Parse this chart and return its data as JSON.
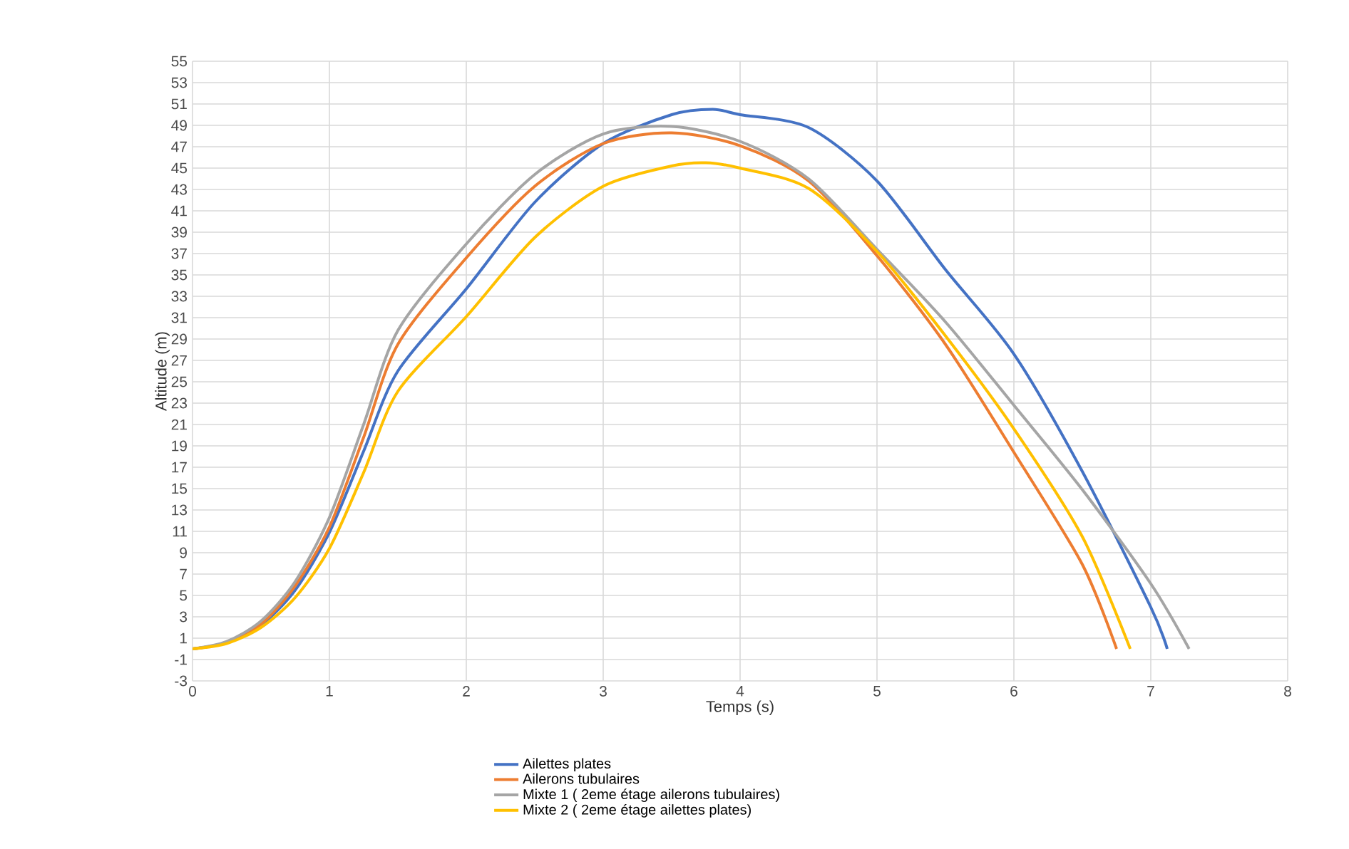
{
  "chart_data": {
    "type": "line",
    "xlabel": "Temps (s)",
    "ylabel": "Altitude (m)",
    "xlim": [
      0,
      8
    ],
    "xticks": [
      0,
      1,
      2,
      3,
      4,
      5,
      6,
      7,
      8
    ],
    "ylim": [
      -3,
      55
    ],
    "yticks": [
      -3,
      -1,
      1,
      3,
      5,
      7,
      9,
      11,
      13,
      15,
      17,
      19,
      21,
      23,
      25,
      27,
      29,
      31,
      33,
      35,
      37,
      39,
      41,
      43,
      45,
      47,
      49,
      51,
      53,
      55
    ],
    "grid": true,
    "legend": "bottom",
    "series": [
      {
        "name": "Ailettes plates",
        "color": "#4472c4",
        "x": [
          0,
          0.25,
          0.5,
          0.75,
          1,
          1.25,
          1.5,
          2,
          2.5,
          3,
          3.5,
          3.8,
          4,
          4.5,
          5,
          5.5,
          6,
          6.5,
          7,
          7.12
        ],
        "values": [
          0,
          0.6,
          2.2,
          5.5,
          10.9,
          18.5,
          26,
          33.7,
          41.8,
          47.3,
          50,
          50.5,
          50,
          48.8,
          43.8,
          35.5,
          27.6,
          16.6,
          3.9,
          0
        ]
      },
      {
        "name": "Ailerons tubulaires",
        "color": "#ed7d31",
        "x": [
          0,
          0.25,
          0.5,
          0.75,
          1,
          1.25,
          1.5,
          2,
          2.5,
          3,
          3.5,
          4,
          4.5,
          5,
          5.5,
          6,
          6.5,
          6.75
        ],
        "values": [
          0,
          0.6,
          2.3,
          5.9,
          11.4,
          19.8,
          28.5,
          36.6,
          43.3,
          47.3,
          48.3,
          47.1,
          43.8,
          36.8,
          28.5,
          18.4,
          7.9,
          0
        ]
      },
      {
        "name": "Mixte 1  ( 2eme étage ailerons tubulaires)",
        "color": "#a5a5a5",
        "x": [
          0,
          0.25,
          0.5,
          0.75,
          1,
          1.25,
          1.5,
          2,
          2.5,
          3,
          3.5,
          4,
          4.5,
          5,
          5.5,
          6,
          6.5,
          7,
          7.28
        ],
        "values": [
          0,
          0.7,
          2.6,
          6.3,
          12.3,
          21,
          29.8,
          37.9,
          44.4,
          48.2,
          48.9,
          47.5,
          44,
          37.4,
          30.6,
          22.8,
          14.9,
          6.1,
          0
        ]
      },
      {
        "name": "Mixte 2  ( 2eme étage ailettes plates)",
        "color": "#ffc000",
        "x": [
          0,
          0.25,
          0.5,
          0.75,
          1,
          1.25,
          1.5,
          2,
          2.5,
          3,
          3.5,
          3.75,
          4,
          4.5,
          5,
          5.5,
          6,
          6.5,
          6.85
        ],
        "values": [
          0,
          0.5,
          2,
          4.8,
          9.4,
          16.5,
          24.1,
          31.1,
          38.5,
          43.3,
          45.2,
          45.5,
          45,
          43.1,
          37.2,
          29.3,
          20.6,
          10.5,
          0
        ]
      }
    ]
  }
}
